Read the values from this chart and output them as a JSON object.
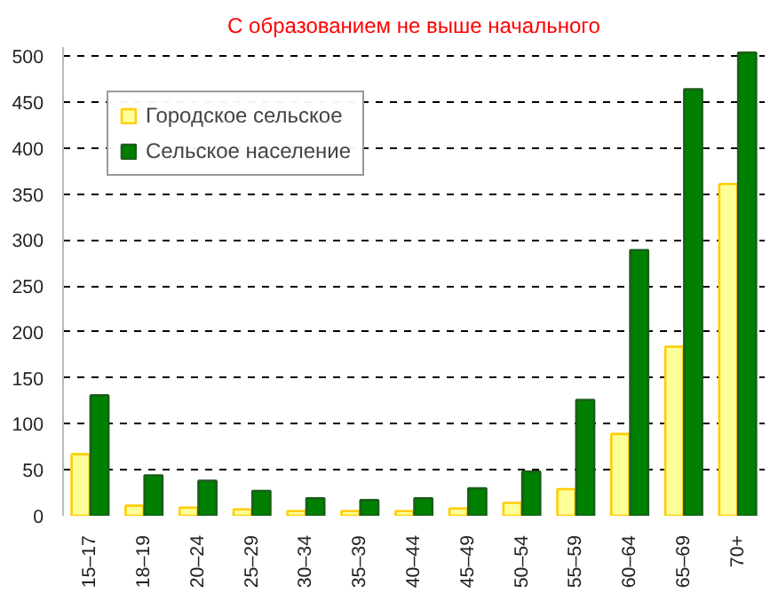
{
  "chart_data": {
    "type": "bar",
    "title": "С образованием не выше начального",
    "categories": [
      "15–17",
      "18–19",
      "20–24",
      "25–29",
      "30–34",
      "35–39",
      "40–44",
      "45–49",
      "50–54",
      "55–59",
      "60–64",
      "65–69",
      "70+"
    ],
    "series": [
      {
        "name": "Городское сельское",
        "color": "#ffff99",
        "values": [
          67,
          11,
          9,
          7,
          5,
          5,
          5,
          8,
          14,
          29,
          89,
          184,
          361
        ]
      },
      {
        "name": "Сельское население",
        "color": "#008000",
        "values": [
          131,
          44,
          38,
          27,
          19,
          17,
          19,
          30,
          48,
          126,
          289,
          464,
          504
        ]
      }
    ],
    "ylim": [
      0,
      510
    ],
    "yticks": [
      0,
      50,
      100,
      150,
      200,
      250,
      300,
      350,
      400,
      450,
      500
    ],
    "grid": "y",
    "legend": "top left"
  }
}
